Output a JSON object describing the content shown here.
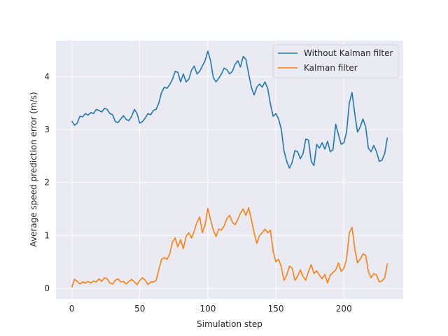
{
  "chart_data": {
    "type": "line",
    "title": "",
    "xlabel": "Simulation step",
    "ylabel": "Average speed prediction error (m/s)",
    "xlim": [
      -11.6,
      243.6
    ],
    "ylim": [
      -0.2,
      4.68
    ],
    "xticks": [
      0,
      50,
      100,
      150,
      200
    ],
    "yticks": [
      0,
      1,
      2,
      3,
      4
    ],
    "grid": true,
    "legend_position": "top-right",
    "colors": {
      "background": "#eaeaf2",
      "grid": "#ffffff"
    },
    "series": [
      {
        "name": "Without Kalman filter",
        "color": "#1f77b4",
        "points": [
          [
            0,
            3.16
          ],
          [
            2,
            3.08
          ],
          [
            4,
            3.12
          ],
          [
            6,
            3.25
          ],
          [
            8,
            3.24
          ],
          [
            10,
            3.3
          ],
          [
            12,
            3.27
          ],
          [
            14,
            3.32
          ],
          [
            16,
            3.3
          ],
          [
            18,
            3.38
          ],
          [
            20,
            3.36
          ],
          [
            22,
            3.33
          ],
          [
            24,
            3.4
          ],
          [
            26,
            3.38
          ],
          [
            28,
            3.3
          ],
          [
            30,
            3.28
          ],
          [
            32,
            3.15
          ],
          [
            34,
            3.13
          ],
          [
            36,
            3.2
          ],
          [
            38,
            3.26
          ],
          [
            40,
            3.19
          ],
          [
            42,
            3.17
          ],
          [
            44,
            3.25
          ],
          [
            46,
            3.38
          ],
          [
            48,
            3.3
          ],
          [
            50,
            3.12
          ],
          [
            52,
            3.15
          ],
          [
            54,
            3.22
          ],
          [
            56,
            3.3
          ],
          [
            58,
            3.28
          ],
          [
            60,
            3.36
          ],
          [
            62,
            3.38
          ],
          [
            64,
            3.5
          ],
          [
            66,
            3.7
          ],
          [
            68,
            3.8
          ],
          [
            70,
            3.78
          ],
          [
            72,
            3.85
          ],
          [
            74,
            3.95
          ],
          [
            76,
            4.1
          ],
          [
            78,
            4.08
          ],
          [
            80,
            3.9
          ],
          [
            82,
            4.05
          ],
          [
            84,
            3.9
          ],
          [
            86,
            3.95
          ],
          [
            88,
            4.12
          ],
          [
            90,
            4.2
          ],
          [
            92,
            4.05
          ],
          [
            94,
            4.1
          ],
          [
            96,
            4.2
          ],
          [
            98,
            4.3
          ],
          [
            100,
            4.48
          ],
          [
            102,
            4.3
          ],
          [
            104,
            3.98
          ],
          [
            106,
            3.9
          ],
          [
            108,
            3.97
          ],
          [
            110,
            4.05
          ],
          [
            112,
            4.16
          ],
          [
            114,
            4.13
          ],
          [
            116,
            4.05
          ],
          [
            118,
            4.1
          ],
          [
            120,
            4.23
          ],
          [
            122,
            4.3
          ],
          [
            124,
            4.18
          ],
          [
            126,
            4.38
          ],
          [
            128,
            4.33
          ],
          [
            130,
            4.05
          ],
          [
            132,
            3.8
          ],
          [
            134,
            3.65
          ],
          [
            136,
            3.8
          ],
          [
            138,
            3.86
          ],
          [
            140,
            3.8
          ],
          [
            142,
            3.9
          ],
          [
            144,
            3.78
          ],
          [
            146,
            3.48
          ],
          [
            148,
            3.25
          ],
          [
            150,
            3.3
          ],
          [
            152,
            3.2
          ],
          [
            154,
            3.0
          ],
          [
            156,
            2.6
          ],
          [
            158,
            2.4
          ],
          [
            160,
            2.27
          ],
          [
            162,
            2.38
          ],
          [
            164,
            2.6
          ],
          [
            166,
            2.58
          ],
          [
            168,
            2.45
          ],
          [
            170,
            2.55
          ],
          [
            172,
            2.82
          ],
          [
            174,
            2.8
          ],
          [
            176,
            2.4
          ],
          [
            178,
            2.32
          ],
          [
            180,
            2.72
          ],
          [
            182,
            2.65
          ],
          [
            184,
            2.75
          ],
          [
            186,
            2.63
          ],
          [
            188,
            2.78
          ],
          [
            190,
            2.58
          ],
          [
            192,
            2.62
          ],
          [
            194,
            3.1
          ],
          [
            196,
            2.9
          ],
          [
            198,
            2.72
          ],
          [
            200,
            2.75
          ],
          [
            202,
            2.95
          ],
          [
            204,
            3.5
          ],
          [
            206,
            3.7
          ],
          [
            208,
            3.3
          ],
          [
            210,
            2.95
          ],
          [
            212,
            3.05
          ],
          [
            214,
            3.2
          ],
          [
            216,
            3.05
          ],
          [
            218,
            2.65
          ],
          [
            220,
            2.58
          ],
          [
            222,
            2.7
          ],
          [
            224,
            2.58
          ],
          [
            226,
            2.4
          ],
          [
            228,
            2.42
          ],
          [
            230,
            2.55
          ],
          [
            232,
            2.85
          ]
        ]
      },
      {
        "name": "Kalman filter",
        "color": "#ff7f0e",
        "points": [
          [
            0,
            0.02
          ],
          [
            2,
            0.17
          ],
          [
            4,
            0.13
          ],
          [
            6,
            0.08
          ],
          [
            8,
            0.12
          ],
          [
            10,
            0.1
          ],
          [
            12,
            0.13
          ],
          [
            14,
            0.1
          ],
          [
            16,
            0.14
          ],
          [
            18,
            0.12
          ],
          [
            20,
            0.18
          ],
          [
            22,
            0.13
          ],
          [
            24,
            0.2
          ],
          [
            26,
            0.18
          ],
          [
            28,
            0.1
          ],
          [
            30,
            0.08
          ],
          [
            32,
            0.15
          ],
          [
            34,
            0.18
          ],
          [
            36,
            0.12
          ],
          [
            38,
            0.13
          ],
          [
            40,
            0.08
          ],
          [
            42,
            0.13
          ],
          [
            44,
            0.17
          ],
          [
            46,
            0.12
          ],
          [
            48,
            0.07
          ],
          [
            50,
            0.15
          ],
          [
            52,
            0.2
          ],
          [
            54,
            0.15
          ],
          [
            56,
            0.07
          ],
          [
            58,
            0.12
          ],
          [
            60,
            0.12
          ],
          [
            62,
            0.15
          ],
          [
            64,
            0.35
          ],
          [
            66,
            0.55
          ],
          [
            68,
            0.58
          ],
          [
            70,
            0.55
          ],
          [
            72,
            0.65
          ],
          [
            74,
            0.88
          ],
          [
            76,
            0.95
          ],
          [
            78,
            0.78
          ],
          [
            80,
            0.92
          ],
          [
            82,
            0.75
          ],
          [
            84,
            0.98
          ],
          [
            86,
            1.05
          ],
          [
            88,
            0.95
          ],
          [
            90,
            1.08
          ],
          [
            92,
            1.25
          ],
          [
            94,
            1.35
          ],
          [
            96,
            1.05
          ],
          [
            98,
            1.2
          ],
          [
            100,
            1.51
          ],
          [
            102,
            1.3
          ],
          [
            104,
            1.1
          ],
          [
            106,
            0.98
          ],
          [
            108,
            1.12
          ],
          [
            110,
            1.1
          ],
          [
            112,
            1.18
          ],
          [
            114,
            1.32
          ],
          [
            116,
            1.38
          ],
          [
            118,
            1.25
          ],
          [
            120,
            1.2
          ],
          [
            122,
            1.3
          ],
          [
            124,
            1.42
          ],
          [
            126,
            1.5
          ],
          [
            128,
            1.38
          ],
          [
            130,
            1.52
          ],
          [
            132,
            1.3
          ],
          [
            134,
            1.05
          ],
          [
            136,
            0.85
          ],
          [
            138,
            1.0
          ],
          [
            140,
            1.05
          ],
          [
            142,
            1.12
          ],
          [
            144,
            1.05
          ],
          [
            146,
            1.1
          ],
          [
            148,
            0.7
          ],
          [
            150,
            0.5
          ],
          [
            152,
            0.55
          ],
          [
            154,
            0.4
          ],
          [
            156,
            0.15
          ],
          [
            158,
            0.25
          ],
          [
            160,
            0.42
          ],
          [
            162,
            0.38
          ],
          [
            164,
            0.15
          ],
          [
            166,
            0.23
          ],
          [
            168,
            0.35
          ],
          [
            170,
            0.22
          ],
          [
            172,
            0.15
          ],
          [
            174,
            0.32
          ],
          [
            176,
            0.45
          ],
          [
            178,
            0.28
          ],
          [
            180,
            0.33
          ],
          [
            182,
            0.25
          ],
          [
            184,
            0.18
          ],
          [
            186,
            0.26
          ],
          [
            188,
            0.1
          ],
          [
            190,
            0.25
          ],
          [
            192,
            0.3
          ],
          [
            194,
            0.35
          ],
          [
            196,
            0.48
          ],
          [
            198,
            0.32
          ],
          [
            200,
            0.38
          ],
          [
            202,
            0.55
          ],
          [
            204,
            1.05
          ],
          [
            206,
            1.15
          ],
          [
            208,
            0.75
          ],
          [
            210,
            0.48
          ],
          [
            212,
            0.55
          ],
          [
            214,
            0.65
          ],
          [
            216,
            0.62
          ],
          [
            218,
            0.32
          ],
          [
            220,
            0.2
          ],
          [
            222,
            0.28
          ],
          [
            224,
            0.25
          ],
          [
            226,
            0.12
          ],
          [
            228,
            0.14
          ],
          [
            230,
            0.2
          ],
          [
            232,
            0.47
          ]
        ]
      }
    ]
  }
}
